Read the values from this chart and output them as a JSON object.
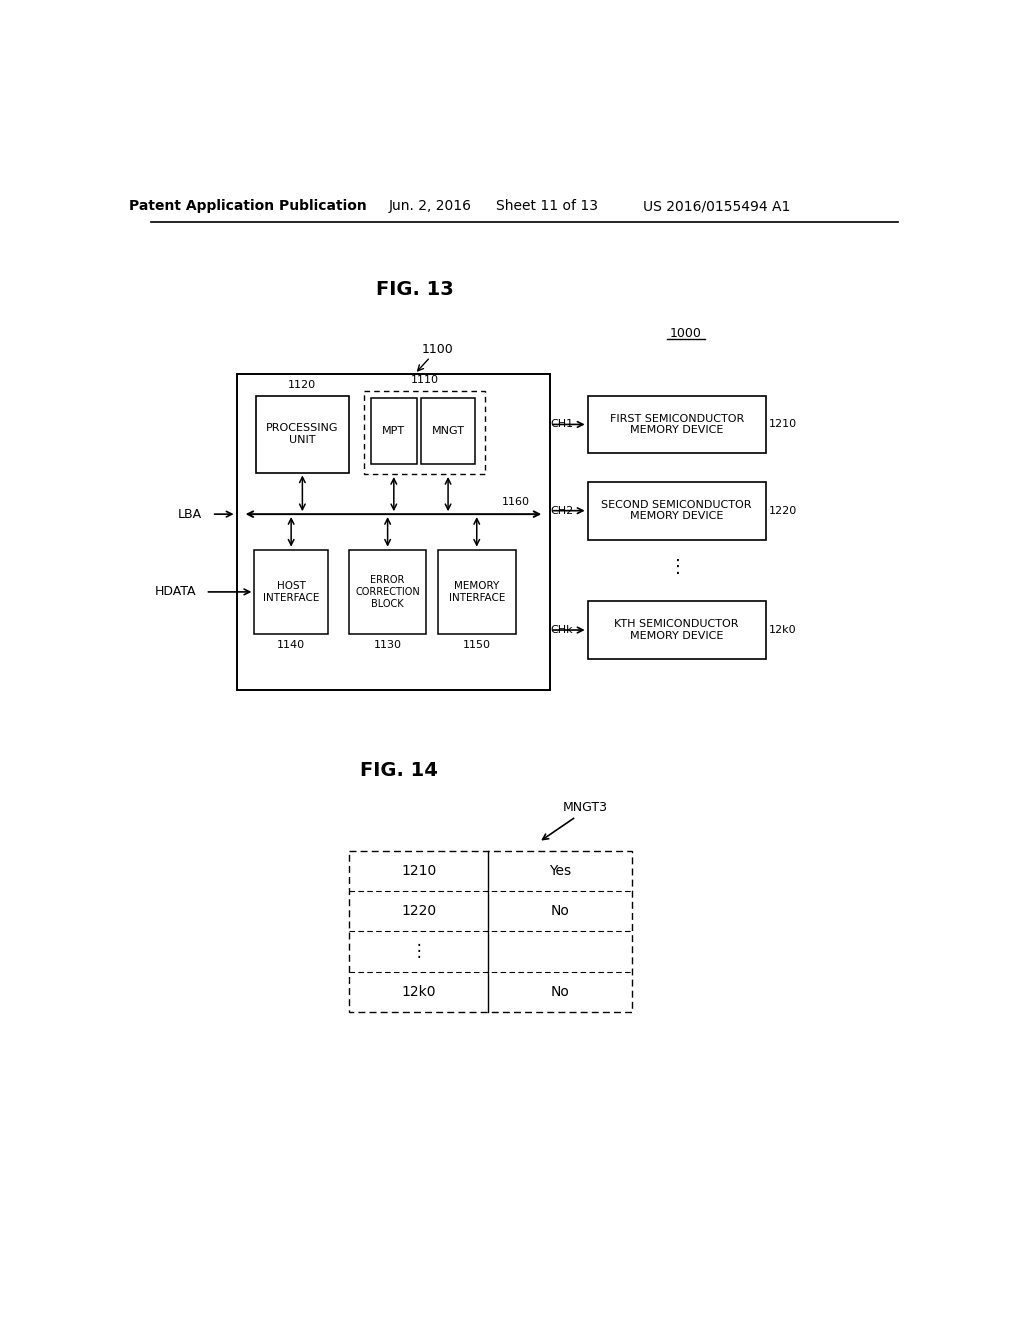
{
  "bg_color": "#ffffff",
  "header_text": "Patent Application Publication",
  "header_date": "Jun. 2, 2016",
  "header_sheet": "Sheet 11 of 13",
  "header_patent": "US 2016/0155494 A1",
  "fig13_title": "FIG. 13",
  "fig14_title": "FIG. 14",
  "label_1000": "1000",
  "label_1100": "1100",
  "label_1110": "1110",
  "label_1120": "1120",
  "label_1130": "1130",
  "label_1140": "1140",
  "label_1150": "1150",
  "label_1160": "1160",
  "label_1210": "1210",
  "label_1220": "1220",
  "label_12k0": "12k0",
  "label_LBA": "LBA",
  "label_HDATA": "HDATA",
  "label_CH1": "CH1",
  "label_CH2": "CH2",
  "label_CHk": "CHk",
  "box_PROCESSING_UNIT": "PROCESSING\nUNIT",
  "box_MPT": "MPT",
  "box_MNGT": "MNGT",
  "box_HOST_INTERFACE": "HOST\nINTERFACE",
  "box_ERROR_CORRECTION": "ERROR\nCORRECTION\nBLOCK",
  "box_MEMORY_INTERFACE": "MEMORY\nINTERFACE",
  "box_FIRST_SEMICONDUCTOR": "FIRST SEMICONDUCTOR\nMEMORY DEVICE",
  "box_SECOND_SEMICONDUCTOR": "SECOND SEMICONDUCTOR\nMEMORY DEVICE",
  "box_KTH_SEMICONDUCTOR": "KTH SEMICONDUCTOR\nMEMORY DEVICE",
  "table_label_MNGT3": "MNGT3",
  "table_rows": [
    {
      "id": "1210",
      "value": "Yes"
    },
    {
      "id": "1220",
      "value": "No"
    },
    {
      "id": "...",
      "value": ""
    },
    {
      "id": "12k0",
      "value": "No"
    }
  ]
}
